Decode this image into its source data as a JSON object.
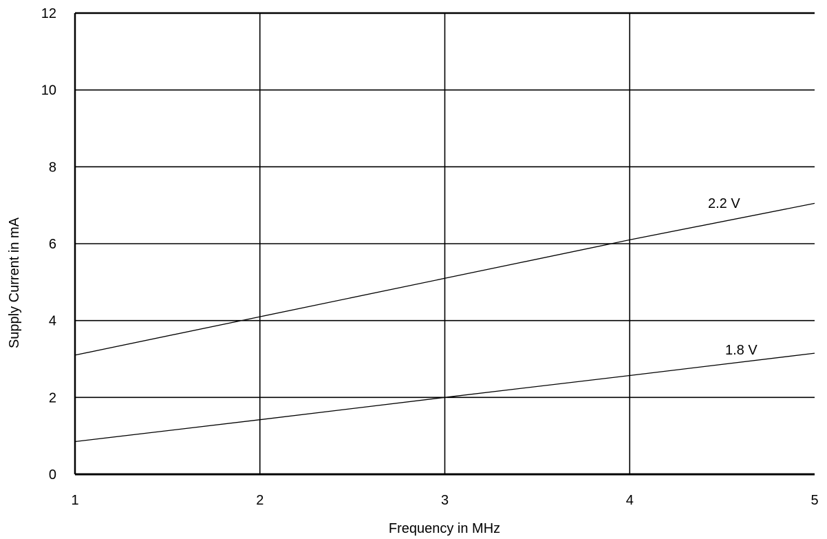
{
  "chart_data": {
    "type": "line",
    "title": "",
    "xlabel": "Frequency in MHz",
    "ylabel": "Supply Current in mA",
    "xlim": [
      1,
      5
    ],
    "ylim": [
      0,
      12
    ],
    "x_ticks": [
      "1",
      "2",
      "3",
      "4",
      "5"
    ],
    "y_ticks": [
      "0",
      "2",
      "4",
      "6",
      "8",
      "10",
      "12"
    ],
    "grid": true,
    "legend": "none",
    "series": [
      {
        "name": "2.2 V",
        "x": [
          1,
          2,
          3,
          4,
          5
        ],
        "values": [
          3.1,
          4.1,
          5.1,
          6.1,
          7.05
        ],
        "color": "#000000"
      },
      {
        "name": "1.8 V",
        "x": [
          1,
          2,
          3,
          4,
          5
        ],
        "values": [
          0.85,
          1.42,
          2.0,
          2.57,
          3.15
        ],
        "color": "#000000"
      }
    ]
  }
}
